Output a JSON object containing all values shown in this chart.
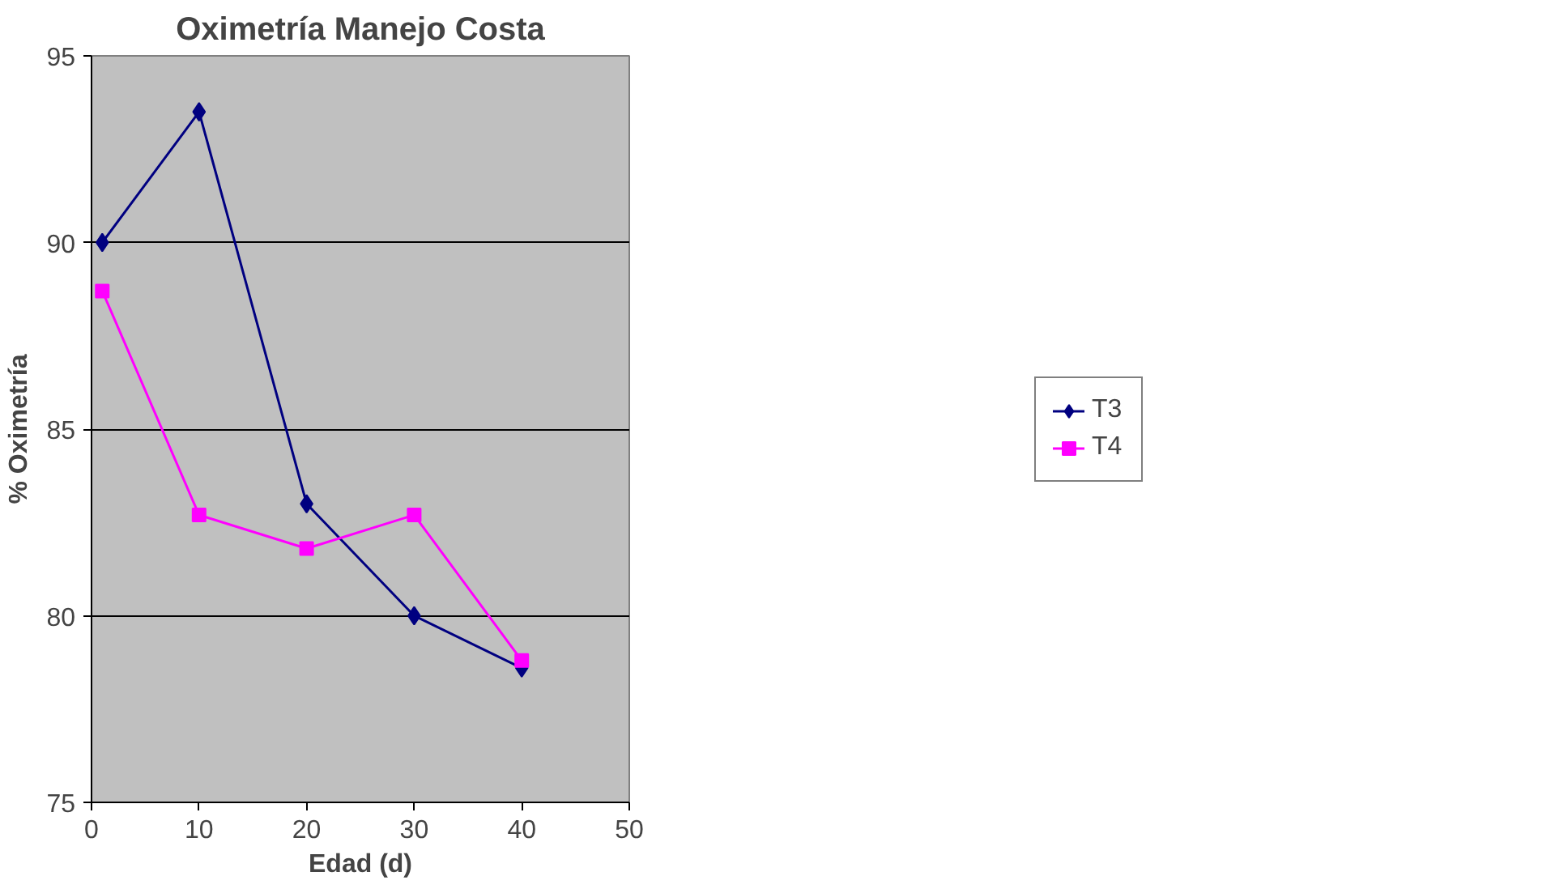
{
  "chart_data": {
    "type": "line",
    "title": "Oximetría Manejo Costa",
    "xlabel": "Edad (d)",
    "ylabel": "% Oximetría",
    "xlim": [
      0,
      50
    ],
    "xticks": [
      0,
      10,
      20,
      30,
      40,
      50
    ],
    "ylim": [
      75,
      95
    ],
    "yticks": [
      75,
      80,
      85,
      90,
      95
    ],
    "grid": "y",
    "legend": "right",
    "line_style": "solid",
    "series": [
      {
        "name": "T3",
        "color": "#000080",
        "marker": "diamond",
        "x": [
          1,
          10,
          20,
          30,
          40
        ],
        "values": [
          90,
          93.5,
          83,
          80,
          78.6
        ]
      },
      {
        "name": "T4",
        "color": "#ff00ff",
        "marker": "square",
        "x": [
          1,
          10,
          20,
          30,
          40
        ],
        "values": [
          88.7,
          82.7,
          81.8,
          82.7,
          78.8
        ]
      }
    ]
  }
}
